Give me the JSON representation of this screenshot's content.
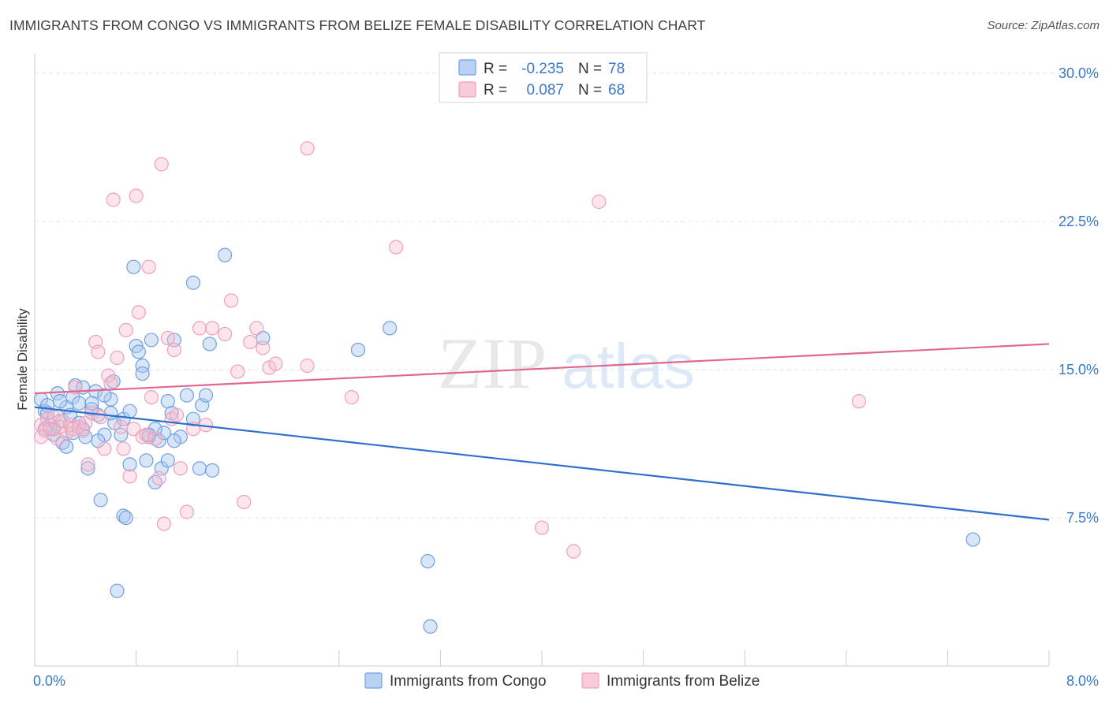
{
  "header": {
    "title": "IMMIGRANTS FROM CONGO VS IMMIGRANTS FROM BELIZE FEMALE DISABILITY CORRELATION CHART",
    "source": "Source: ZipAtlas.com"
  },
  "watermark": {
    "part1": "ZIP",
    "part2": "atlas"
  },
  "legend": {
    "r_label": "R =",
    "n_label": "N =",
    "series": [
      {
        "r": "-0.235",
        "n": "78"
      },
      {
        "r": "0.087",
        "n": "68"
      }
    ]
  },
  "chart_data": {
    "type": "scatter",
    "title": "IMMIGRANTS FROM CONGO VS IMMIGRANTS FROM BELIZE FEMALE DISABILITY CORRELATION CHART",
    "xlabel": "",
    "ylabel": "Female Disability",
    "xlim": [
      0.0,
      8.0
    ],
    "ylim": [
      0.0,
      31.0
    ],
    "x_tick_labels": [
      {
        "value": 0.0,
        "label": "0.0%"
      },
      {
        "value": 8.0,
        "label": "8.0%"
      }
    ],
    "y_tick_labels": [
      {
        "value": 7.5,
        "label": "7.5%"
      },
      {
        "value": 15.0,
        "label": "15.0%"
      },
      {
        "value": 22.5,
        "label": "22.5%"
      },
      {
        "value": 30.0,
        "label": "30.0%"
      }
    ],
    "colors": {
      "congo": "#6fa0e0",
      "belize": "#f0a0b8",
      "congo_line": "#2f6fd0",
      "belize_line": "#e06890",
      "tick": "#3a78c9"
    },
    "series": [
      {
        "name": "Immigrants from Congo",
        "r": -0.235,
        "n": 78,
        "trend": [
          [
            0.0,
            13.1
          ],
          [
            8.0,
            7.4
          ]
        ],
        "points": [
          [
            0.05,
            13.5
          ],
          [
            0.08,
            12.9
          ],
          [
            0.1,
            13.2
          ],
          [
            0.12,
            12.2
          ],
          [
            0.15,
            11.7
          ],
          [
            0.18,
            13.8
          ],
          [
            0.2,
            12.4
          ],
          [
            0.22,
            11.3
          ],
          [
            0.25,
            13.1
          ],
          [
            0.28,
            12.7
          ],
          [
            0.3,
            13.6
          ],
          [
            0.32,
            14.2
          ],
          [
            0.35,
            13.3
          ],
          [
            0.38,
            12.0
          ],
          [
            0.4,
            11.6
          ],
          [
            0.42,
            10.0
          ],
          [
            0.45,
            13.0
          ],
          [
            0.48,
            13.9
          ],
          [
            0.5,
            12.7
          ],
          [
            0.52,
            8.4
          ],
          [
            0.55,
            11.7
          ],
          [
            0.6,
            13.5
          ],
          [
            0.62,
            14.4
          ],
          [
            0.63,
            12.3
          ],
          [
            0.65,
            3.8
          ],
          [
            0.68,
            11.7
          ],
          [
            0.7,
            7.6
          ],
          [
            0.72,
            7.5
          ],
          [
            0.75,
            10.2
          ],
          [
            0.78,
            20.2
          ],
          [
            0.8,
            16.2
          ],
          [
            0.82,
            15.9
          ],
          [
            0.85,
            15.2
          ],
          [
            0.88,
            10.4
          ],
          [
            0.9,
            11.6
          ],
          [
            0.92,
            16.5
          ],
          [
            0.95,
            9.3
          ],
          [
            0.98,
            11.4
          ],
          [
            1.0,
            10.0
          ],
          [
            1.02,
            11.8
          ],
          [
            1.05,
            13.4
          ],
          [
            1.08,
            12.8
          ],
          [
            1.1,
            16.5
          ],
          [
            1.15,
            11.6
          ],
          [
            1.2,
            13.7
          ],
          [
            1.25,
            12.5
          ],
          [
            1.3,
            10.0
          ],
          [
            1.32,
            13.2
          ],
          [
            1.35,
            13.7
          ],
          [
            1.38,
            16.3
          ],
          [
            1.4,
            9.9
          ],
          [
            1.5,
            20.8
          ],
          [
            1.25,
            19.4
          ],
          [
            1.8,
            16.6
          ],
          [
            2.55,
            16.0
          ],
          [
            2.8,
            17.1
          ],
          [
            3.1,
            5.3
          ],
          [
            3.12,
            2.0
          ],
          [
            7.4,
            6.4
          ],
          [
            0.1,
            12.8
          ],
          [
            0.15,
            12.0
          ],
          [
            0.25,
            11.1
          ],
          [
            0.3,
            11.8
          ],
          [
            0.45,
            13.3
          ],
          [
            0.55,
            13.7
          ],
          [
            0.7,
            12.5
          ],
          [
            0.85,
            14.8
          ],
          [
            0.95,
            12.0
          ],
          [
            1.05,
            10.4
          ],
          [
            0.2,
            13.4
          ],
          [
            0.35,
            12.3
          ],
          [
            0.6,
            12.8
          ],
          [
            0.38,
            14.1
          ],
          [
            0.5,
            11.4
          ],
          [
            0.75,
            12.9
          ],
          [
            0.9,
            11.7
          ],
          [
            1.1,
            11.4
          ],
          [
            0.08,
            12.0
          ]
        ]
      },
      {
        "name": "Immigrants from Belize",
        "r": 0.087,
        "n": 68,
        "trend": [
          [
            0.0,
            13.8
          ],
          [
            8.0,
            16.3
          ]
        ],
        "points": [
          [
            0.05,
            12.2
          ],
          [
            0.08,
            11.9
          ],
          [
            0.1,
            12.5
          ],
          [
            0.12,
            12.0
          ],
          [
            0.15,
            12.6
          ],
          [
            0.18,
            11.5
          ],
          [
            0.2,
            12.1
          ],
          [
            0.22,
            12.4
          ],
          [
            0.25,
            11.8
          ],
          [
            0.28,
            12.2
          ],
          [
            0.3,
            12.0
          ],
          [
            0.32,
            14.1
          ],
          [
            0.35,
            12.1
          ],
          [
            0.38,
            11.9
          ],
          [
            0.4,
            12.3
          ],
          [
            0.42,
            10.2
          ],
          [
            0.45,
            12.8
          ],
          [
            0.48,
            16.4
          ],
          [
            0.5,
            15.9
          ],
          [
            0.52,
            12.6
          ],
          [
            0.55,
            11.0
          ],
          [
            0.58,
            14.7
          ],
          [
            0.6,
            14.3
          ],
          [
            0.62,
            23.6
          ],
          [
            0.65,
            15.6
          ],
          [
            0.68,
            12.1
          ],
          [
            0.7,
            11.0
          ],
          [
            0.72,
            17.0
          ],
          [
            0.75,
            9.6
          ],
          [
            0.78,
            12.0
          ],
          [
            0.8,
            23.8
          ],
          [
            0.82,
            17.9
          ],
          [
            0.85,
            11.6
          ],
          [
            0.88,
            11.7
          ],
          [
            0.9,
            20.2
          ],
          [
            0.92,
            13.6
          ],
          [
            0.95,
            11.5
          ],
          [
            0.98,
            9.5
          ],
          [
            1.0,
            25.4
          ],
          [
            1.02,
            7.2
          ],
          [
            1.05,
            16.6
          ],
          [
            1.08,
            12.5
          ],
          [
            1.1,
            16.0
          ],
          [
            1.12,
            12.7
          ],
          [
            1.15,
            10.0
          ],
          [
            1.2,
            7.8
          ],
          [
            1.25,
            12.0
          ],
          [
            1.3,
            17.1
          ],
          [
            1.35,
            12.2
          ],
          [
            1.4,
            17.1
          ],
          [
            1.5,
            16.8
          ],
          [
            1.55,
            18.5
          ],
          [
            1.6,
            14.9
          ],
          [
            1.65,
            8.3
          ],
          [
            1.7,
            16.4
          ],
          [
            1.75,
            17.1
          ],
          [
            1.8,
            16.1
          ],
          [
            1.85,
            15.1
          ],
          [
            1.9,
            15.3
          ],
          [
            2.15,
            26.2
          ],
          [
            2.15,
            15.2
          ],
          [
            2.5,
            13.6
          ],
          [
            2.85,
            21.2
          ],
          [
            4.0,
            7.0
          ],
          [
            4.25,
            5.8
          ],
          [
            4.45,
            23.5
          ],
          [
            6.5,
            13.4
          ],
          [
            0.05,
            11.6
          ]
        ]
      }
    ]
  },
  "bottom_legend": {
    "items": [
      {
        "label": "Immigrants from Congo"
      },
      {
        "label": "Immigrants from Belize"
      }
    ]
  }
}
